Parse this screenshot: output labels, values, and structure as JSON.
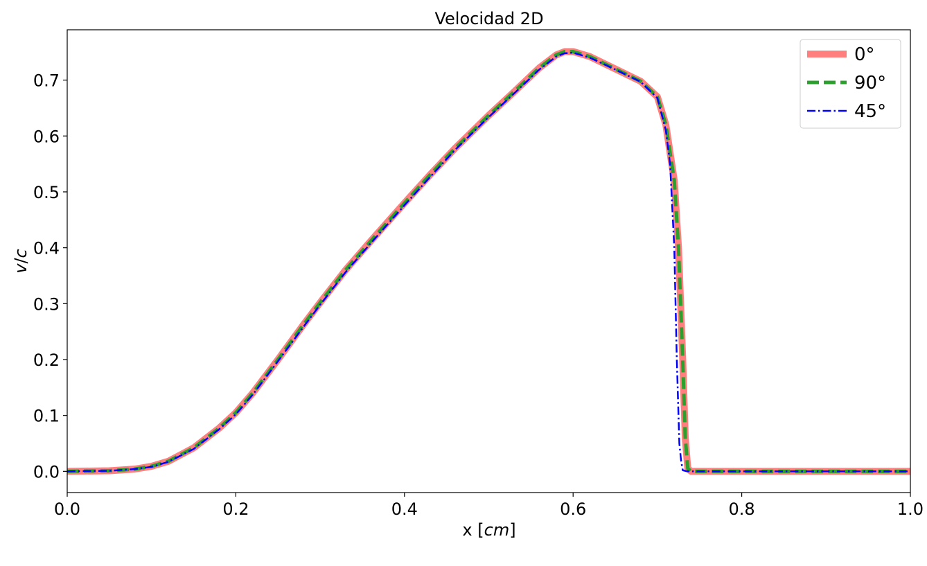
{
  "chart_data": {
    "type": "line",
    "title": "Velocidad 2D",
    "xlabel_main": "x [",
    "xlabel_unit": "cm",
    "xlabel_end": "]",
    "ylabel_v": "v",
    "ylabel_sep": "/",
    "ylabel_c": "c",
    "xlim": [
      0.0,
      1.0
    ],
    "ylim": [
      -0.038,
      0.79
    ],
    "xticks": [
      0.0,
      0.2,
      0.4,
      0.6,
      0.8,
      1.0
    ],
    "xtick_labels": [
      "0.0",
      "0.2",
      "0.4",
      "0.6",
      "0.8",
      "1.0"
    ],
    "yticks": [
      0.0,
      0.1,
      0.2,
      0.3,
      0.4,
      0.5,
      0.6,
      0.7
    ],
    "ytick_labels": [
      "0.0",
      "0.1",
      "0.2",
      "0.3",
      "0.4",
      "0.5",
      "0.6",
      "0.7"
    ],
    "grid": false,
    "legend_position": "top-right",
    "series": [
      {
        "name": "0°",
        "color": "#ff7f7f",
        "style": "solid-thick",
        "x": [
          0.0,
          0.05,
          0.08,
          0.1,
          0.12,
          0.15,
          0.18,
          0.2,
          0.22,
          0.25,
          0.28,
          0.3,
          0.33,
          0.36,
          0.4,
          0.43,
          0.46,
          0.5,
          0.53,
          0.56,
          0.58,
          0.59,
          0.6,
          0.62,
          0.65,
          0.68,
          0.7,
          0.71,
          0.72,
          0.725,
          0.73,
          0.733,
          0.736,
          0.74,
          0.76,
          0.8,
          0.9,
          1.0
        ],
        "y": [
          0.0,
          0.001,
          0.004,
          0.009,
          0.018,
          0.042,
          0.077,
          0.105,
          0.14,
          0.2,
          0.262,
          0.302,
          0.36,
          0.412,
          0.48,
          0.53,
          0.578,
          0.637,
          0.679,
          0.722,
          0.745,
          0.751,
          0.751,
          0.742,
          0.72,
          0.698,
          0.67,
          0.62,
          0.52,
          0.4,
          0.2,
          0.06,
          0.005,
          0.0,
          0.0,
          0.0,
          0.0,
          0.0
        ]
      },
      {
        "name": "90°",
        "color": "#2ca02c",
        "style": "dashed",
        "x": [
          0.0,
          0.05,
          0.08,
          0.1,
          0.12,
          0.15,
          0.18,
          0.2,
          0.22,
          0.25,
          0.28,
          0.3,
          0.33,
          0.36,
          0.4,
          0.43,
          0.46,
          0.5,
          0.53,
          0.56,
          0.58,
          0.59,
          0.6,
          0.62,
          0.65,
          0.68,
          0.7,
          0.71,
          0.72,
          0.725,
          0.73,
          0.733,
          0.736,
          0.74,
          0.76,
          0.8,
          0.9,
          1.0
        ],
        "y": [
          0.0,
          0.001,
          0.004,
          0.009,
          0.018,
          0.042,
          0.077,
          0.105,
          0.14,
          0.2,
          0.262,
          0.302,
          0.36,
          0.412,
          0.48,
          0.53,
          0.578,
          0.637,
          0.679,
          0.722,
          0.745,
          0.751,
          0.751,
          0.742,
          0.72,
          0.698,
          0.67,
          0.62,
          0.52,
          0.4,
          0.2,
          0.06,
          0.005,
          0.0,
          0.0,
          0.0,
          0.0,
          0.0
        ]
      },
      {
        "name": "45°",
        "color": "#0000ff",
        "style": "dashdot",
        "x": [
          0.0,
          0.05,
          0.08,
          0.1,
          0.12,
          0.15,
          0.18,
          0.2,
          0.22,
          0.25,
          0.28,
          0.3,
          0.33,
          0.36,
          0.4,
          0.43,
          0.46,
          0.5,
          0.53,
          0.56,
          0.58,
          0.59,
          0.6,
          0.62,
          0.65,
          0.68,
          0.7,
          0.71,
          0.715,
          0.72,
          0.723,
          0.726,
          0.728,
          0.73,
          0.735,
          0.76,
          0.8,
          0.9,
          1.0
        ],
        "y": [
          0.0,
          0.001,
          0.004,
          0.008,
          0.017,
          0.04,
          0.075,
          0.102,
          0.137,
          0.197,
          0.258,
          0.298,
          0.356,
          0.408,
          0.476,
          0.526,
          0.575,
          0.634,
          0.676,
          0.719,
          0.742,
          0.748,
          0.749,
          0.74,
          0.719,
          0.697,
          0.668,
          0.61,
          0.55,
          0.4,
          0.2,
          0.05,
          0.02,
          0.002,
          0.0,
          0.0,
          0.0,
          0.0,
          0.0
        ]
      }
    ]
  }
}
